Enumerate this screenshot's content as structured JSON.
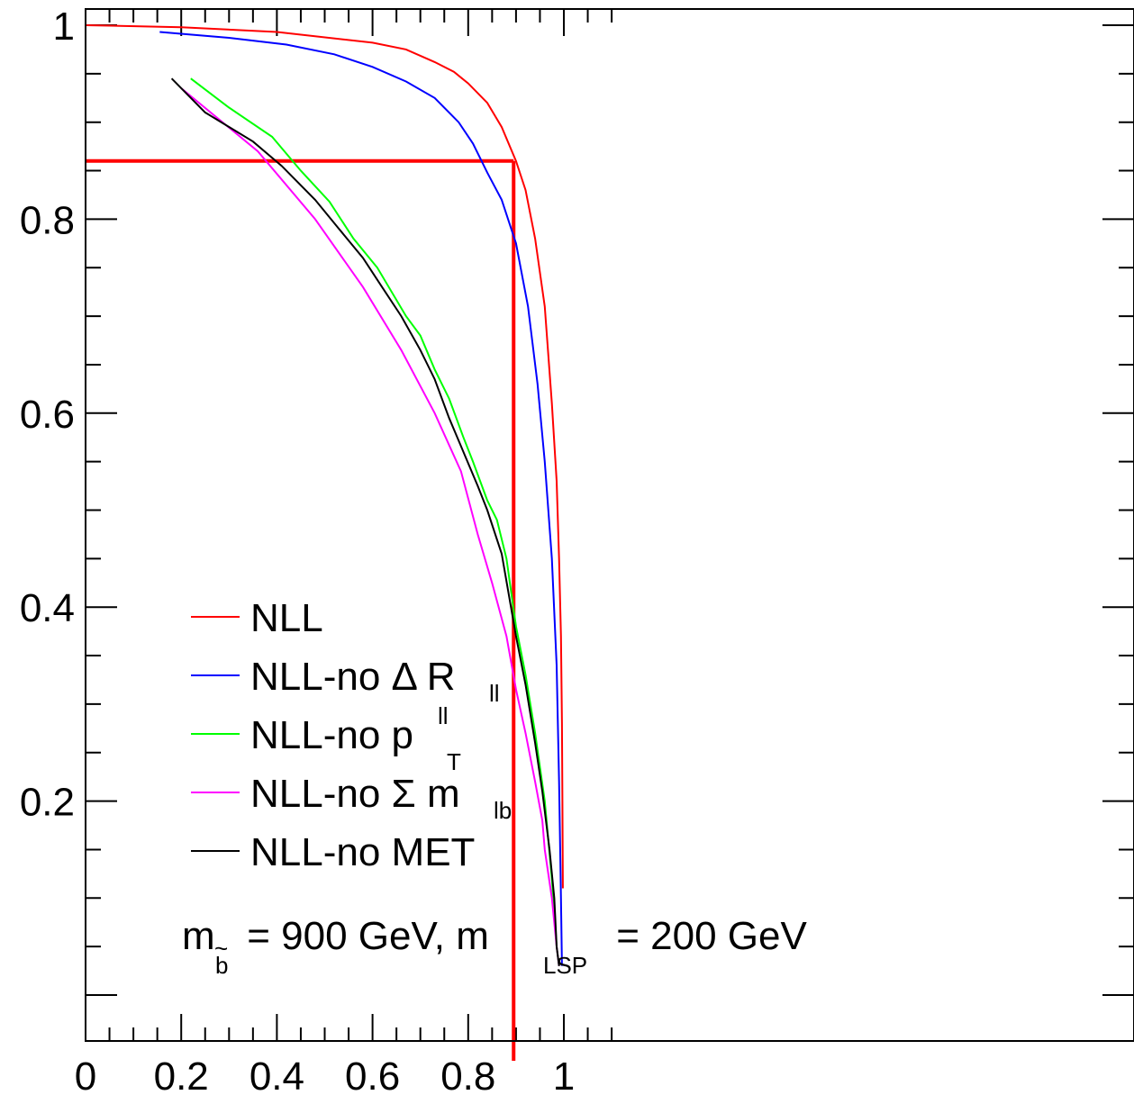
{
  "chart_data": {
    "type": "line",
    "title": "",
    "xlabel": "",
    "ylabel": "",
    "xlim": [
      0,
      1.1
    ],
    "ylim": [
      0.03,
      1.1
    ],
    "x_ticks": [
      0,
      0.2,
      0.4,
      0.6,
      0.8,
      1
    ],
    "y_ticks": [
      0.2,
      0.4,
      0.6,
      0.8,
      1
    ],
    "x_tick_labels": [
      "0",
      "0.2",
      "0.4",
      "0.6",
      "0.8",
      "1"
    ],
    "y_tick_labels": [
      "0.2",
      "0.4",
      "0.6",
      "0.8",
      "1"
    ],
    "grid": false,
    "legend_position": "lower-left",
    "series": [
      {
        "name": "NLL",
        "color": "#ff0000",
        "points": [
          [
            0.0,
            1.0
          ],
          [
            0.2,
            0.998
          ],
          [
            0.4,
            0.993
          ],
          [
            0.6,
            0.982
          ],
          [
            0.67,
            0.975
          ],
          [
            0.73,
            0.962
          ],
          [
            0.77,
            0.952
          ],
          [
            0.8,
            0.94
          ],
          [
            0.84,
            0.92
          ],
          [
            0.87,
            0.895
          ],
          [
            0.9,
            0.86
          ],
          [
            0.92,
            0.83
          ],
          [
            0.94,
            0.78
          ],
          [
            0.96,
            0.71
          ],
          [
            0.975,
            0.61
          ],
          [
            0.985,
            0.53
          ],
          [
            0.99,
            0.45
          ],
          [
            0.994,
            0.37
          ],
          [
            0.996,
            0.28
          ],
          [
            0.997,
            0.2
          ],
          [
            0.998,
            0.11
          ]
        ]
      },
      {
        "name": "NLL-no",
        "label_main": "NLL-no Δ R",
        "label_sub": "ll",
        "color": "#0000ff",
        "points": [
          [
            0.155,
            0.993
          ],
          [
            0.3,
            0.987
          ],
          [
            0.42,
            0.98
          ],
          [
            0.52,
            0.97
          ],
          [
            0.6,
            0.957
          ],
          [
            0.67,
            0.942
          ],
          [
            0.73,
            0.925
          ],
          [
            0.78,
            0.9
          ],
          [
            0.81,
            0.878
          ],
          [
            0.84,
            0.848
          ],
          [
            0.87,
            0.82
          ],
          [
            0.9,
            0.775
          ],
          [
            0.925,
            0.71
          ],
          [
            0.945,
            0.63
          ],
          [
            0.96,
            0.55
          ],
          [
            0.975,
            0.45
          ],
          [
            0.985,
            0.34
          ],
          [
            0.99,
            0.22
          ],
          [
            0.994,
            0.1
          ],
          [
            0.996,
            0.03
          ]
        ]
      },
      {
        "name": "NLL-no",
        "label_main": "NLL-no p",
        "label_sup": "ll",
        "label_sub": "T",
        "color": "#00ff00",
        "points": [
          [
            0.22,
            0.945
          ],
          [
            0.3,
            0.915
          ],
          [
            0.39,
            0.885
          ],
          [
            0.45,
            0.85
          ],
          [
            0.51,
            0.818
          ],
          [
            0.56,
            0.78
          ],
          [
            0.61,
            0.75
          ],
          [
            0.67,
            0.7
          ],
          [
            0.7,
            0.68
          ],
          [
            0.73,
            0.645
          ],
          [
            0.76,
            0.615
          ],
          [
            0.79,
            0.575
          ],
          [
            0.81,
            0.55
          ],
          [
            0.84,
            0.51
          ],
          [
            0.86,
            0.49
          ],
          [
            0.88,
            0.45
          ],
          [
            0.9,
            0.38
          ],
          [
            0.92,
            0.33
          ],
          [
            0.94,
            0.27
          ],
          [
            0.96,
            0.2
          ],
          [
            0.975,
            0.12
          ],
          [
            0.985,
            0.05
          ],
          [
            0.99,
            0.03
          ]
        ]
      },
      {
        "name": "NLL-no",
        "label_main": "NLL-no Σ m",
        "label_sub": "lb",
        "color": "#ff00ff",
        "points": [
          [
            0.2,
            0.935
          ],
          [
            0.36,
            0.87
          ],
          [
            0.48,
            0.8
          ],
          [
            0.58,
            0.73
          ],
          [
            0.66,
            0.665
          ],
          [
            0.73,
            0.6
          ],
          [
            0.785,
            0.54
          ],
          [
            0.82,
            0.475
          ],
          [
            0.85,
            0.425
          ],
          [
            0.88,
            0.37
          ],
          [
            0.9,
            0.315
          ],
          [
            0.92,
            0.27
          ],
          [
            0.94,
            0.22
          ],
          [
            0.955,
            0.18
          ],
          [
            0.96,
            0.15
          ],
          [
            0.975,
            0.1
          ],
          [
            0.985,
            0.05
          ],
          [
            0.99,
            0.03
          ]
        ]
      },
      {
        "name": "NLL-no MET",
        "color": "#000000",
        "points": [
          [
            0.18,
            0.945
          ],
          [
            0.25,
            0.91
          ],
          [
            0.35,
            0.88
          ],
          [
            0.41,
            0.855
          ],
          [
            0.48,
            0.82
          ],
          [
            0.53,
            0.79
          ],
          [
            0.58,
            0.76
          ],
          [
            0.62,
            0.73
          ],
          [
            0.66,
            0.7
          ],
          [
            0.7,
            0.665
          ],
          [
            0.73,
            0.635
          ],
          [
            0.76,
            0.595
          ],
          [
            0.79,
            0.56
          ],
          [
            0.82,
            0.525
          ],
          [
            0.84,
            0.5
          ],
          [
            0.87,
            0.455
          ],
          [
            0.9,
            0.37
          ],
          [
            0.92,
            0.32
          ],
          [
            0.94,
            0.26
          ],
          [
            0.955,
            0.21
          ],
          [
            0.97,
            0.15
          ],
          [
            0.98,
            0.1
          ],
          [
            0.985,
            0.05
          ],
          [
            0.99,
            0.03
          ]
        ]
      }
    ],
    "reference_lines": {
      "color": "#ff0000",
      "horizontal_y": 0.86,
      "horizontal_x_range": [
        0,
        0.895
      ],
      "vertical_x": 0.895,
      "vertical_y_range": [
        0.86,
        0.0
      ]
    },
    "annotation": {
      "prefix": "m",
      "prefix_sub": "b",
      "prefix_sub_accent": "~",
      "middle": " = 900 GeV, m",
      "middle_sub": "LSP",
      "suffix": " = 200 GeV"
    }
  }
}
